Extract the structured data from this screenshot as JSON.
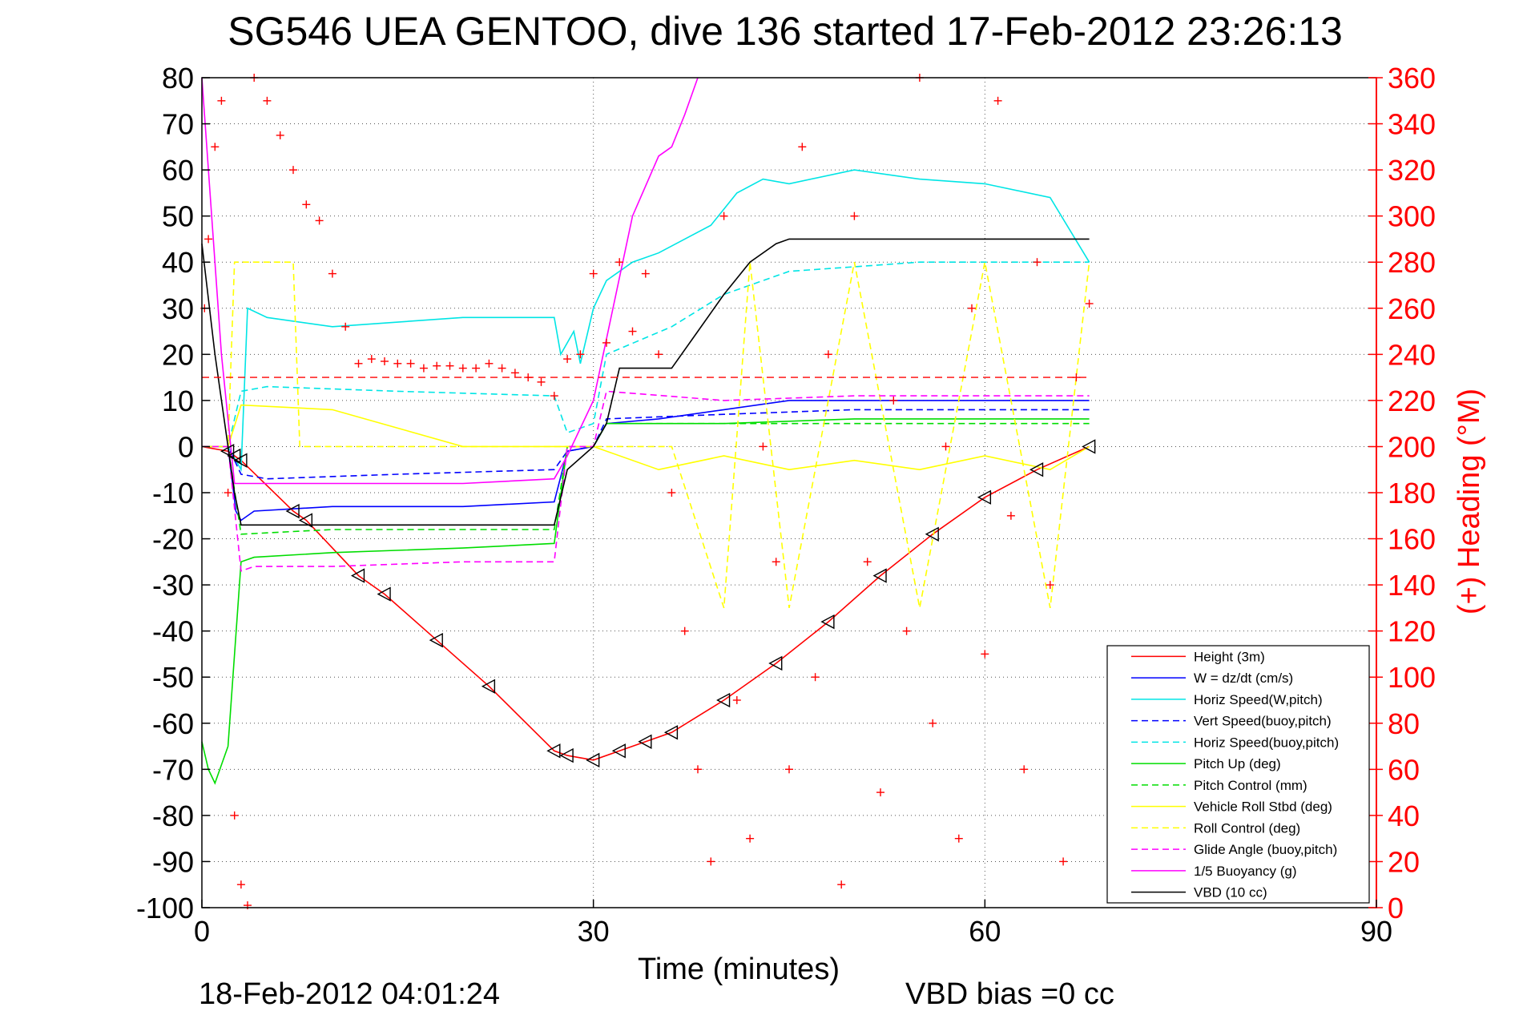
{
  "chart_data": {
    "type": "line",
    "title": "SG546 UEA GENTOO, dive 136 started 17-Feb-2012 23:26:13",
    "xlabel": "Time (minutes)",
    "ylabel_right": "(+) Heading (°M)",
    "footer_left": "18-Feb-2012 04:01:24",
    "footer_right": "VBD bias =0 cc",
    "xlim": [
      0,
      90
    ],
    "ylim_left": [
      -100,
      80
    ],
    "ylim_right": [
      0,
      360
    ],
    "xticks": [
      "0",
      "30",
      "60",
      "90"
    ],
    "yticks_left": [
      "80",
      "70",
      "60",
      "50",
      "40",
      "30",
      "20",
      "10",
      "0",
      "-10",
      "-20",
      "-30",
      "-40",
      "-50",
      "-60",
      "-70",
      "-80",
      "-90",
      "-100"
    ],
    "yticks_right": [
      "360",
      "340",
      "320",
      "300",
      "280",
      "260",
      "240",
      "220",
      "200",
      "180",
      "160",
      "140",
      "120",
      "100",
      "80",
      "60",
      "40",
      "20",
      "0"
    ],
    "grid": true,
    "legend_position": "bottom-right",
    "colors": {
      "axes": "#000000",
      "right_axis": "#ff0000"
    },
    "series": [
      {
        "name": "Height (3m)",
        "color": "#ff0000",
        "dash": false,
        "x": [
          0,
          2,
          2.5,
          3,
          7,
          8,
          12,
          14,
          18,
          22,
          27,
          28,
          30,
          32,
          34,
          36,
          40,
          44,
          48,
          52,
          56,
          60,
          64,
          68
        ],
        "y": [
          0,
          -1,
          -2,
          -3,
          -14,
          -16,
          -28,
          -32,
          -42,
          -52,
          -66,
          -67,
          -68,
          -66,
          -64,
          -62,
          -55,
          -47,
          -38,
          -28,
          -19,
          -11,
          -5,
          0
        ]
      },
      {
        "name": "W = dz/dt (cm/s)",
        "color": "#0000ff",
        "dash": false,
        "x": [
          0,
          2,
          2.6,
          3,
          4,
          10,
          20,
          27,
          28,
          30,
          31,
          35,
          40,
          45,
          50,
          55,
          60,
          65,
          68
        ],
        "y": [
          0,
          0,
          -14,
          -16,
          -14,
          -13,
          -13,
          -12,
          -1,
          0,
          5,
          6,
          8,
          10,
          10,
          10,
          10,
          10,
          10
        ]
      },
      {
        "name": "Horiz Speed(W,pitch)",
        "color": "#00e5e5",
        "dash": false,
        "x": [
          0,
          2,
          3,
          3.5,
          5,
          10,
          20,
          27,
          27.5,
          28.5,
          29,
          30,
          31,
          33,
          35,
          37,
          39,
          41,
          43,
          45,
          50,
          55,
          60,
          65,
          68
        ],
        "y": [
          0,
          0,
          -5,
          30,
          28,
          26,
          28,
          28,
          20,
          25,
          18,
          30,
          36,
          40,
          42,
          45,
          48,
          55,
          58,
          57,
          60,
          58,
          57,
          54,
          40
        ]
      },
      {
        "name": "Vert Speed(buoy,pitch)",
        "color": "#0000ff",
        "dash": true,
        "x": [
          0,
          2,
          3,
          5,
          15,
          27,
          28,
          30,
          31,
          40,
          50,
          60,
          68
        ],
        "y": [
          0,
          0,
          -6,
          -7,
          -6,
          -5,
          -1,
          0,
          6,
          7,
          8,
          8,
          8
        ]
      },
      {
        "name": "Horiz Speed(buoy,pitch)",
        "color": "#00e5e5",
        "dash": true,
        "x": [
          0,
          2,
          3,
          5,
          15,
          27,
          28,
          30,
          31,
          36,
          40,
          45,
          50,
          55,
          60,
          65,
          68
        ],
        "y": [
          0,
          0,
          12,
          13,
          12,
          11,
          3,
          5,
          20,
          26,
          33,
          38,
          39,
          40,
          40,
          40,
          40
        ]
      },
      {
        "name": "Pitch Up (deg)",
        "color": "#00dd00",
        "dash": false,
        "x": [
          0,
          0.5,
          1,
          2,
          3,
          4,
          10,
          20,
          27,
          28,
          30,
          31,
          40,
          50,
          60,
          68
        ],
        "y": [
          -64,
          -70,
          -73,
          -65,
          -25,
          -24,
          -23,
          -22,
          -21,
          0,
          0,
          5,
          5,
          6,
          6,
          6
        ]
      },
      {
        "name": "Pitch Control (mm)",
        "color": "#00dd00",
        "dash": true,
        "x": [
          0,
          2,
          3,
          10,
          27,
          28,
          30,
          31,
          68
        ],
        "y": [
          0,
          0,
          -19,
          -18,
          -18,
          0,
          0,
          5,
          5
        ]
      },
      {
        "name": "Vehicle Roll Stbd (deg)",
        "color": "#ffff00",
        "dash": false,
        "x": [
          0,
          2,
          3,
          10,
          20,
          27,
          30,
          35,
          40,
          45,
          50,
          55,
          60,
          65,
          68
        ],
        "y": [
          0,
          0,
          9,
          8,
          0,
          0,
          0,
          -5,
          -2,
          -5,
          -3,
          -5,
          -2,
          -5,
          0
        ]
      },
      {
        "name": "Roll Control (deg)",
        "color": "#ffff00",
        "dash": true,
        "x": [
          0,
          2,
          2.5,
          7,
          7.5,
          12,
          12.5,
          27,
          30,
          36,
          40,
          42,
          45,
          50,
          55,
          60,
          65,
          68
        ],
        "y": [
          0,
          0,
          40,
          40,
          0,
          0,
          0,
          0,
          0,
          0,
          -35,
          40,
          -35,
          40,
          -35,
          40,
          -35,
          40
        ]
      },
      {
        "name": "Glide Angle (buoy,pitch)",
        "color": "#ff00ff",
        "dash": true,
        "x": [
          0,
          2,
          3,
          4,
          10,
          20,
          27,
          28,
          30,
          31,
          40,
          50,
          60,
          68
        ],
        "y": [
          0,
          0,
          -27,
          -26,
          -26,
          -25,
          -25,
          0,
          0,
          12,
          10,
          11,
          11,
          11
        ]
      },
      {
        "name": "1/5 Buoyancy (g)",
        "color": "#ff00ff",
        "dash": false,
        "x": [
          0,
          1.5,
          2.5,
          3,
          10,
          20,
          27,
          28,
          30,
          33,
          35,
          36,
          37,
          38
        ],
        "y": [
          80,
          20,
          -8,
          -8,
          -8,
          -8,
          -7,
          -2,
          10,
          50,
          63,
          65,
          72,
          80
        ]
      },
      {
        "name": "VBD (10 cc)",
        "color": "#000000",
        "dash": false,
        "x": [
          0,
          1,
          2,
          2.5,
          3,
          10,
          20,
          27,
          28,
          30,
          31,
          32,
          35,
          36,
          38,
          40,
          42,
          44,
          45,
          50,
          60,
          68
        ],
        "y": [
          44,
          20,
          0,
          -10,
          -17,
          -17,
          -17,
          -17,
          -5,
          0,
          5,
          17,
          17,
          17,
          25,
          33,
          40,
          44,
          45,
          45,
          45,
          45
        ]
      }
    ],
    "reference_lines": [
      {
        "color": "#ff0000",
        "dash": true,
        "y": 15
      }
    ],
    "heading_scatter": {
      "color": "#ff0000",
      "marker": "+",
      "axis": "right",
      "x": [
        0.2,
        0.5,
        1.0,
        1.5,
        2.0,
        2.5,
        3.0,
        3.5,
        4.0,
        5,
        6,
        7,
        8,
        9,
        10,
        11,
        12,
        13,
        14,
        15,
        16,
        17,
        18,
        19,
        20,
        21,
        22,
        23,
        24,
        25,
        26,
        27,
        28,
        29,
        30,
        31,
        32,
        33,
        34,
        35,
        36,
        37,
        38,
        39,
        40,
        41,
        42,
        43,
        44,
        45,
        46,
        47,
        48,
        49,
        50,
        51,
        52,
        53,
        54,
        55,
        56,
        57,
        58,
        59,
        60,
        61,
        62,
        63,
        64,
        65,
        66,
        67,
        68
      ],
      "y": [
        260,
        290,
        330,
        350,
        180,
        40,
        10,
        1,
        360,
        350,
        335,
        320,
        305,
        298,
        275,
        252,
        236,
        238,
        237,
        236,
        236,
        234,
        235,
        235,
        234,
        234,
        236,
        234,
        232,
        230,
        228,
        222,
        238,
        240,
        275,
        245,
        280,
        250,
        275,
        240,
        180,
        120,
        60,
        20,
        300,
        90,
        30,
        200,
        150,
        60,
        330,
        100,
        240,
        10,
        300,
        150,
        50,
        220,
        120,
        360,
        80,
        200,
        30,
        260,
        110,
        350,
        170,
        60,
        280,
        140,
        20,
        230,
        262
      ]
    }
  }
}
